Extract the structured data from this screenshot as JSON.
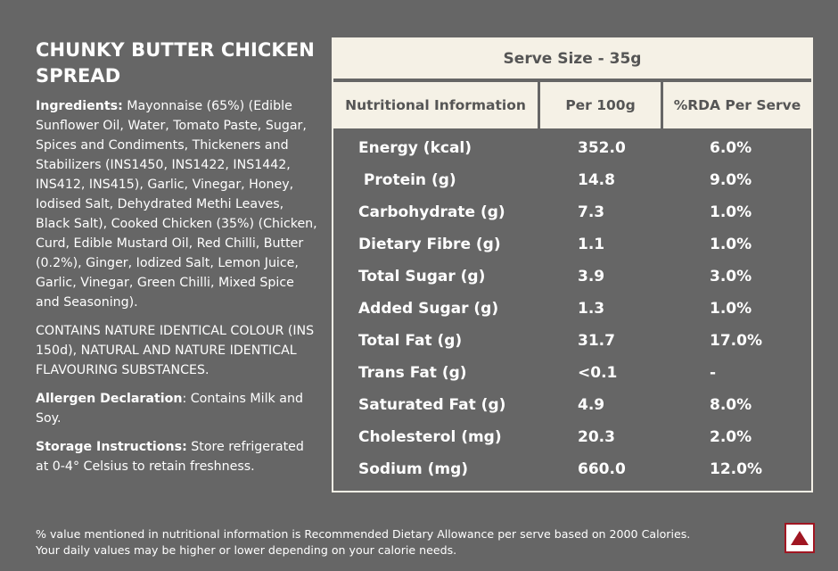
{
  "product": {
    "title": "CHUNKY BUTTER CHICKEN SPREAD"
  },
  "ingredients": {
    "label": "Ingredients:",
    "text": " Mayonnaise (65%) (Edible Sunflower Oil, Water, Tomato Paste, Sugar, Spices and Condiments, Thickeners and Stabilizers (INS1450, INS1422, INS1442, INS412, INS415), Garlic, Vinegar, Honey, Iodised Salt, Dehydrated Methi Leaves, Black Salt), Cooked Chicken (35%) (Chicken, Curd, Edible Mustard Oil, Red Chilli, Butter (0.2%), Ginger, Iodized Salt, Lemon Juice, Garlic, Vinegar, Green Chilli, Mixed Spice and Seasoning)."
  },
  "contains": "CONTAINS NATURE IDENTICAL COLOUR (INS 150d), NATURAL AND NATURE IDENTICAL FLAVOURING SUBSTANCES.",
  "allergen": {
    "label": "Allergen Declaration",
    "text": ": Contains Milk and Soy."
  },
  "storage": {
    "label": "Storage Instructions:",
    "text": " Store refrigerated at 0-4° Celsius to retain freshness."
  },
  "nutrition": {
    "serve_size": "Serve Size  - 35g",
    "headers": [
      "Nutritional Information",
      "Per 100g",
      "%RDA Per Serve"
    ],
    "rows": [
      {
        "name": "Energy (kcal)",
        "per100": "352.0",
        "rda": "6.0%"
      },
      {
        "name": " Protein (g)",
        "per100": "14.8",
        "rda": "9.0%"
      },
      {
        "name": "Carbohydrate (g)",
        "per100": "7.3",
        "rda": "1.0%"
      },
      {
        "name": "Dietary Fibre (g)",
        "per100": "1.1",
        "rda": "1.0%"
      },
      {
        "name": "Total Sugar (g)",
        "per100": "3.9",
        "rda": "3.0%"
      },
      {
        "name": "Added Sugar (g)",
        "per100": "1.3",
        "rda": "1.0%"
      },
      {
        "name": "Total Fat (g)",
        "per100": "31.7",
        "rda": "17.0%"
      },
      {
        "name": "Trans Fat (g)",
        "per100": "<0.1",
        "rda": "-"
      },
      {
        "name": "Saturated Fat (g)",
        "per100": "4.9",
        "rda": "8.0%"
      },
      {
        "name": "Cholesterol (mg)",
        "per100": "20.3",
        "rda": "2.0%"
      },
      {
        "name": "Sodium (mg)",
        "per100": "660.0",
        "rda": "12.0%"
      }
    ]
  },
  "footnote": {
    "line1": "% value mentioned in nutritional information is Recommended Dietary Allowance per serve based on 2000 Calories.",
    "line2": "Your daily values may be higher or lower depending on your calorie needs."
  },
  "colors": {
    "background": "#666666",
    "table_header": "#f5f1e6",
    "logo_red": "#a01622"
  },
  "logo_icon": "triangle-logo-icon"
}
